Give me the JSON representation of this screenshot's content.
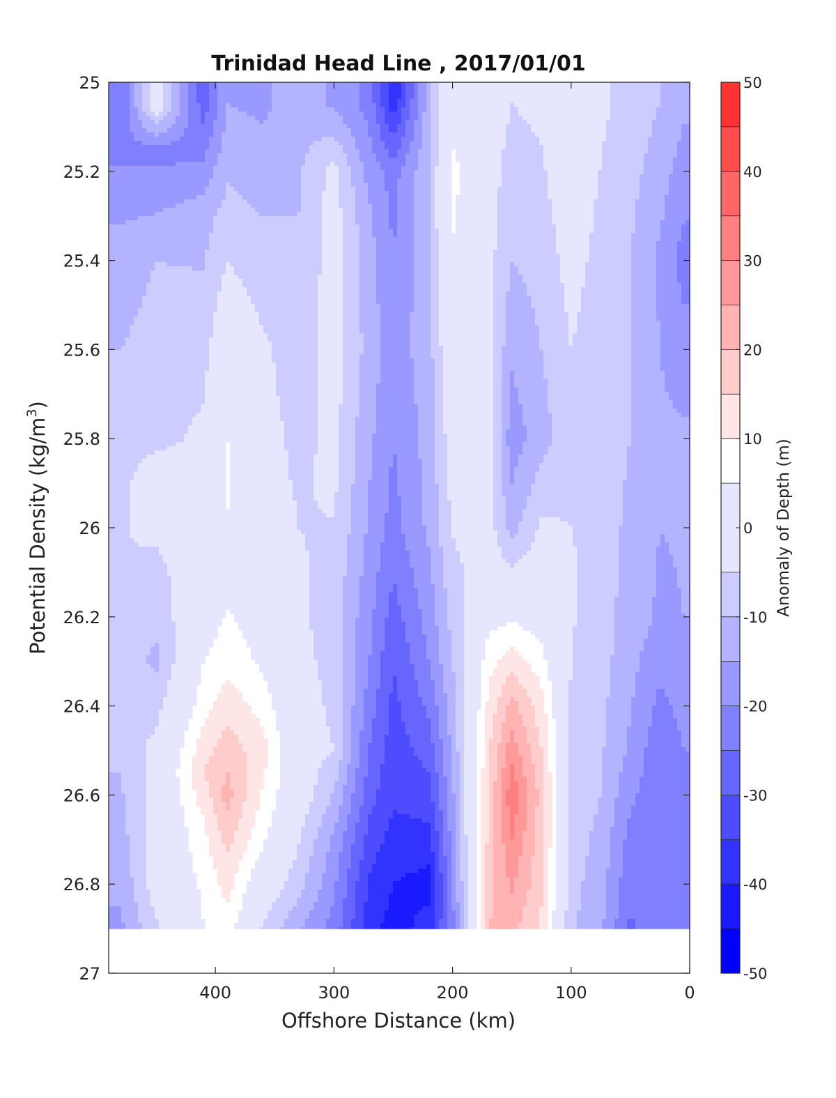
{
  "chart_data": {
    "type": "heatmap",
    "subtype": "filled-contour",
    "title": "Trinidad Head Line , 2017/01/01",
    "xlabel": "Offshore Distance (km)",
    "ylabel_main": "Potential Density (kg/m",
    "ylabel_sup": "3",
    "ylabel_close": ")",
    "colorbar_label": "Anomaly of Depth (m)",
    "xlim": [
      490,
      0
    ],
    "x_reversed": true,
    "ylim": [
      25,
      27
    ],
    "y_reversed": true,
    "xticks": [
      {
        "value": 400,
        "label": "400"
      },
      {
        "value": 300,
        "label": "300"
      },
      {
        "value": 200,
        "label": "200"
      },
      {
        "value": 100,
        "label": "100"
      },
      {
        "value": 0,
        "label": "0"
      }
    ],
    "yticks": [
      {
        "value": 25,
        "label": "25"
      },
      {
        "value": 25.2,
        "label": "25.2"
      },
      {
        "value": 25.4,
        "label": "25.4"
      },
      {
        "value": 25.6,
        "label": "25.6"
      },
      {
        "value": 25.8,
        "label": "25.8"
      },
      {
        "value": 26,
        "label": "26"
      },
      {
        "value": 26.2,
        "label": "26.2"
      },
      {
        "value": 26.4,
        "label": "26.4"
      },
      {
        "value": 26.6,
        "label": "26.6"
      },
      {
        "value": 26.8,
        "label": "26.8"
      },
      {
        "value": 27,
        "label": "27"
      }
    ],
    "colorbar": {
      "min": -50,
      "max": 50,
      "levels": [
        -50,
        -45,
        -40,
        -35,
        -30,
        -25,
        -20,
        -15,
        -10,
        -5,
        5,
        10,
        15,
        20,
        25,
        30,
        35,
        40,
        45,
        50
      ],
      "colors": [
        "#0000ff",
        "#1a1aff",
        "#3333ff",
        "#4d4dff",
        "#6666ff",
        "#8080ff",
        "#9999ff",
        "#b3b3ff",
        "#ccccff",
        "#e6e6ff",
        "#ffffff",
        "#ffe6e6",
        "#ffcccc",
        "#ffb3b3",
        "#ff9999",
        "#ff8080",
        "#ff6666",
        "#ff4d4d",
        "#ff3333"
      ],
      "ticks": [
        {
          "value": 50,
          "label": "50"
        },
        {
          "value": 40,
          "label": "40"
        },
        {
          "value": 30,
          "label": "30"
        },
        {
          "value": 20,
          "label": "20"
        },
        {
          "value": 10,
          "label": "10"
        },
        {
          "value": 0,
          "label": "0"
        },
        {
          "value": -10,
          "label": "-10"
        },
        {
          "value": -20,
          "label": "-20"
        },
        {
          "value": -30,
          "label": "-30"
        },
        {
          "value": -40,
          "label": "-40"
        },
        {
          "value": -50,
          "label": "-50"
        }
      ]
    },
    "data_y_extent": [
      25,
      26.9
    ],
    "columns": [
      {
        "x": 480,
        "nodes": [
          [
            25.05,
            -25
          ],
          [
            25.4,
            -12
          ],
          [
            25.8,
            -8
          ],
          [
            26.05,
            -5
          ],
          [
            26.4,
            -8
          ],
          [
            26.7,
            -12
          ],
          [
            26.9,
            -16
          ]
        ]
      },
      {
        "x": 450,
        "nodes": [
          [
            25.05,
            0
          ],
          [
            25.15,
            -22
          ],
          [
            25.4,
            -10
          ],
          [
            25.8,
            -7
          ],
          [
            25.9,
            0
          ],
          [
            26.1,
            -7
          ],
          [
            26.3,
            -11
          ],
          [
            26.5,
            -3
          ],
          [
            26.8,
            -2
          ],
          [
            26.9,
            -6
          ]
        ]
      },
      {
        "x": 410,
        "nodes": [
          [
            25.05,
            -28
          ],
          [
            25.3,
            -12
          ],
          [
            25.6,
            -7
          ],
          [
            25.9,
            -2
          ],
          [
            26.2,
            2
          ],
          [
            26.4,
            8
          ],
          [
            26.55,
            15
          ],
          [
            26.65,
            10
          ],
          [
            26.8,
            6
          ],
          [
            26.9,
            5
          ]
        ]
      },
      {
        "x": 390,
        "nodes": [
          [
            25.05,
            -15
          ],
          [
            25.3,
            -8
          ],
          [
            25.5,
            -2
          ],
          [
            25.7,
            4
          ],
          [
            25.9,
            6
          ],
          [
            26.1,
            3
          ],
          [
            26.3,
            8
          ],
          [
            26.5,
            18
          ],
          [
            26.6,
            22
          ],
          [
            26.75,
            14
          ],
          [
            26.9,
            8
          ]
        ]
      },
      {
        "x": 360,
        "nodes": [
          [
            25.05,
            -16
          ],
          [
            25.3,
            -10
          ],
          [
            25.6,
            -4
          ],
          [
            25.9,
            -2
          ],
          [
            26.1,
            1
          ],
          [
            26.3,
            4
          ],
          [
            26.5,
            12
          ],
          [
            26.7,
            6
          ],
          [
            26.9,
            -6
          ]
        ]
      },
      {
        "x": 330,
        "nodes": [
          [
            25.05,
            -12
          ],
          [
            25.3,
            -10
          ],
          [
            25.6,
            -8
          ],
          [
            26.0,
            -5
          ],
          [
            26.3,
            -3
          ],
          [
            26.6,
            -1
          ],
          [
            26.8,
            -8
          ],
          [
            26.9,
            -14
          ]
        ]
      },
      {
        "x": 300,
        "nodes": [
          [
            25.05,
            -16
          ],
          [
            25.2,
            -3
          ],
          [
            25.5,
            -2
          ],
          [
            25.9,
            -4
          ],
          [
            26.2,
            -8
          ],
          [
            26.5,
            -5
          ],
          [
            26.7,
            -16
          ],
          [
            26.9,
            -22
          ]
        ]
      },
      {
        "x": 270,
        "nodes": [
          [
            25.05,
            -22
          ],
          [
            25.3,
            -14
          ],
          [
            25.6,
            -12
          ],
          [
            26.0,
            -16
          ],
          [
            26.3,
            -20
          ],
          [
            26.6,
            -28
          ],
          [
            26.8,
            -36
          ],
          [
            26.9,
            -38
          ]
        ]
      },
      {
        "x": 250,
        "nodes": [
          [
            25.03,
            -40
          ],
          [
            25.2,
            -22
          ],
          [
            25.6,
            -18
          ],
          [
            26.0,
            -22
          ],
          [
            26.3,
            -30
          ],
          [
            26.6,
            -34
          ],
          [
            26.8,
            -40
          ],
          [
            26.9,
            -42
          ]
        ]
      },
      {
        "x": 220,
        "nodes": [
          [
            25.05,
            -12
          ],
          [
            25.3,
            -10
          ],
          [
            25.6,
            -12
          ],
          [
            26.0,
            -14
          ],
          [
            26.3,
            -20
          ],
          [
            26.6,
            -32
          ],
          [
            26.8,
            -42
          ],
          [
            26.9,
            -38
          ]
        ]
      },
      {
        "x": 200,
        "nodes": [
          [
            25.05,
            2
          ],
          [
            25.2,
            7
          ],
          [
            25.5,
            3
          ],
          [
            25.9,
            -3
          ],
          [
            26.2,
            -8
          ],
          [
            26.5,
            -14
          ],
          [
            26.7,
            -18
          ],
          [
            26.9,
            -22
          ]
        ]
      },
      {
        "x": 170,
        "nodes": [
          [
            25.05,
            -2
          ],
          [
            25.4,
            -3
          ],
          [
            25.8,
            -2
          ],
          [
            26.1,
            -2
          ],
          [
            26.3,
            8
          ],
          [
            26.5,
            14
          ],
          [
            26.7,
            16
          ],
          [
            26.9,
            20
          ]
        ]
      },
      {
        "x": 150,
        "nodes": [
          [
            25.05,
            -5
          ],
          [
            25.4,
            -10
          ],
          [
            25.8,
            -18
          ],
          [
            26.0,
            -12
          ],
          [
            26.2,
            4
          ],
          [
            26.4,
            22
          ],
          [
            26.6,
            34
          ],
          [
            26.8,
            26
          ],
          [
            26.9,
            22
          ]
        ]
      },
      {
        "x": 125,
        "nodes": [
          [
            25.05,
            -4
          ],
          [
            25.4,
            -8
          ],
          [
            25.8,
            -12
          ],
          [
            26.0,
            -4
          ],
          [
            26.2,
            2
          ],
          [
            26.4,
            12
          ],
          [
            26.6,
            18
          ],
          [
            26.8,
            16
          ],
          [
            26.9,
            14
          ]
        ]
      },
      {
        "x": 100,
        "nodes": [
          [
            25.05,
            1
          ],
          [
            25.4,
            -3
          ],
          [
            25.8,
            -7
          ],
          [
            26.1,
            -4
          ],
          [
            26.3,
            -5
          ],
          [
            26.6,
            -7
          ],
          [
            26.9,
            -9
          ]
        ]
      },
      {
        "x": 75,
        "nodes": [
          [
            25.05,
            -4
          ],
          [
            25.3,
            -6
          ],
          [
            25.6,
            -8
          ],
          [
            26.0,
            -8
          ],
          [
            26.3,
            -8
          ],
          [
            26.6,
            -10
          ],
          [
            26.9,
            -14
          ]
        ]
      },
      {
        "x": 50,
        "nodes": [
          [
            25.05,
            -7
          ],
          [
            25.4,
            -10
          ],
          [
            25.8,
            -10
          ],
          [
            26.2,
            -12
          ],
          [
            26.5,
            -16
          ],
          [
            26.7,
            -22
          ],
          [
            26.9,
            -26
          ]
        ]
      },
      {
        "x": 25,
        "nodes": [
          [
            25.05,
            -10
          ],
          [
            25.4,
            -16
          ],
          [
            25.8,
            -14
          ],
          [
            26.2,
            -16
          ],
          [
            26.5,
            -24
          ],
          [
            26.8,
            -22
          ],
          [
            26.9,
            -20
          ]
        ]
      },
      {
        "x": 5,
        "nodes": [
          [
            25.05,
            -14
          ],
          [
            25.4,
            -22
          ],
          [
            25.8,
            -14
          ],
          [
            26.2,
            -15
          ],
          [
            26.5,
            -20
          ],
          [
            26.9,
            -22
          ]
        ]
      }
    ]
  }
}
